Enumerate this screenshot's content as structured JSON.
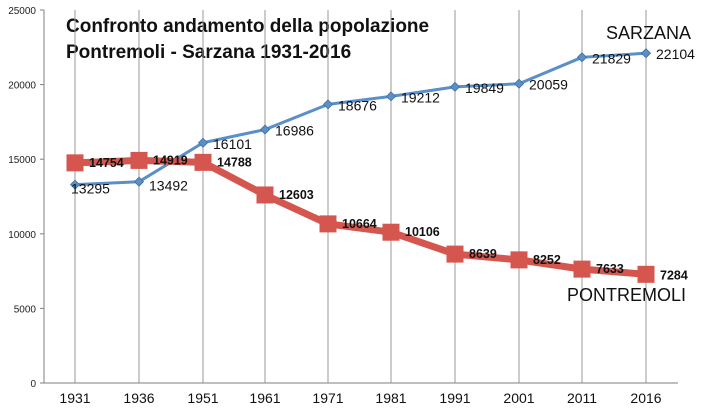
{
  "chart_data": {
    "type": "line",
    "title_line1": "Confronto andamento della popolazione",
    "title_line2": "Pontremoli - Sarzana 1931-2016",
    "xlabel": "",
    "ylabel": "",
    "categories": [
      "1931",
      "1936",
      "1951",
      "1961",
      "1971",
      "1981",
      "1991",
      "2001",
      "2011",
      "2016"
    ],
    "ylim": [
      0,
      25000
    ],
    "yticks": [
      0,
      5000,
      10000,
      15000,
      20000,
      25000
    ],
    "grid": "vertical",
    "series": [
      {
        "name": "SARZANA",
        "color": "#5b8fc7",
        "marker": "diamond",
        "values": [
          13295,
          13492,
          16101,
          16986,
          18676,
          19212,
          19849,
          20059,
          21829,
          22104
        ],
        "labels": [
          "13295",
          "13492",
          "16101",
          "16986",
          "18676",
          "19212",
          "19849",
          "20059",
          "21829",
          "22104"
        ]
      },
      {
        "name": "PONTREMOLI",
        "color": "#d4564e",
        "marker": "square",
        "values": [
          14754,
          14919,
          14788,
          12603,
          10664,
          10106,
          8639,
          8252,
          7633,
          7284
        ],
        "labels": [
          "14754",
          "14919",
          "14788",
          "12603",
          "10664",
          "10106",
          "8639",
          "8252",
          "7633",
          "7284"
        ]
      }
    ]
  }
}
